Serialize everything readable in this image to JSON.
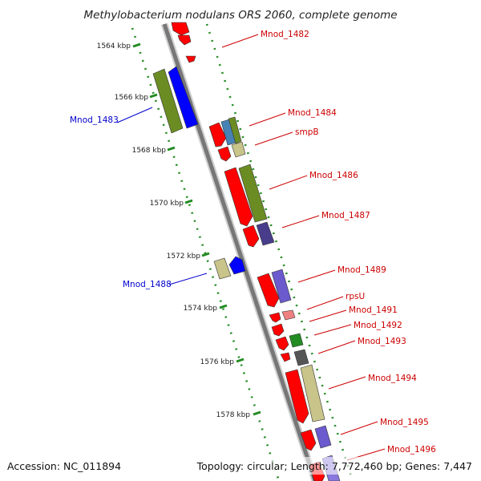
{
  "title": "Methylobacterium nodulans ORS 2060, complete genome",
  "accession": "Accession: NC_011894",
  "summary": "Topology: circular; Length: 7,772,460 bp; Genes: 7,447",
  "ticks": [
    "1564 kbp",
    "1566 kbp",
    "1568 kbp",
    "1570 kbp",
    "1572 kbp",
    "1574 kbp",
    "1576 kbp",
    "1578 kbp"
  ],
  "genes": [
    {
      "name": "Mnod_1482",
      "strand": "forward"
    },
    {
      "name": "Mnod_1483",
      "strand": "reverse"
    },
    {
      "name": "Mnod_1484",
      "strand": "forward"
    },
    {
      "name": "smpB",
      "strand": "forward"
    },
    {
      "name": "Mnod_1486",
      "strand": "forward"
    },
    {
      "name": "Mnod_1487",
      "strand": "forward"
    },
    {
      "name": "Mnod_1488",
      "strand": "reverse"
    },
    {
      "name": "Mnod_1489",
      "strand": "forward"
    },
    {
      "name": "rpsU",
      "strand": "forward"
    },
    {
      "name": "Mnod_1491",
      "strand": "forward"
    },
    {
      "name": "Mnod_1492",
      "strand": "forward"
    },
    {
      "name": "Mnod_1493",
      "strand": "forward"
    },
    {
      "name": "Mnod_1494",
      "strand": "forward"
    },
    {
      "name": "Mnod_1495",
      "strand": "forward"
    },
    {
      "name": "Mnod_1496",
      "strand": "forward"
    }
  ],
  "colors": {
    "forward_label": "#cc0000",
    "reverse_label": "#0000cc",
    "cds": "#ff0000",
    "olive": "#6b8c23",
    "blue": "#0000ff",
    "khaki": "#c8c48a",
    "slate": "#6a5acd",
    "steel": "#4682b4",
    "green": "#228b22",
    "grey": "#555555",
    "pink": "#f08080",
    "tick": "#228b22",
    "backbone": "#777777"
  }
}
